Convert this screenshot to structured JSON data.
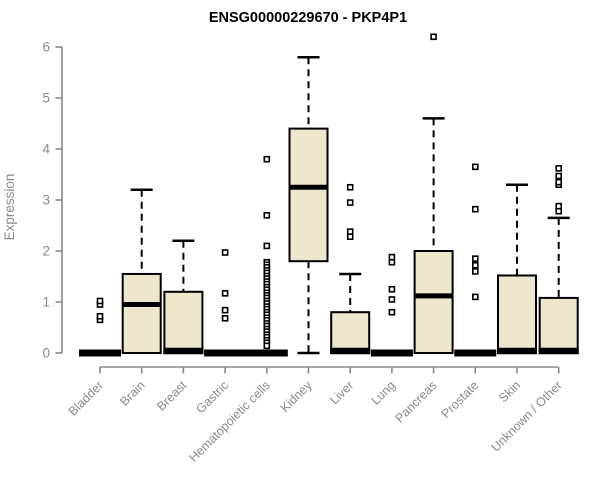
{
  "chart_data": {
    "type": "boxplot",
    "title": "ENSG00000229670 - PKP4P1",
    "ylabel": "Expression",
    "xlabel": "",
    "ylim": [
      0,
      6
    ],
    "yticks": [
      0,
      1,
      2,
      3,
      4,
      5,
      6
    ],
    "grid": false,
    "legend": "none",
    "categories": [
      "Bladder",
      "Brain",
      "Breast",
      "Gastric",
      "Hematopoietic cells",
      "Kidney",
      "Liver",
      "Lung",
      "Pancreas",
      "Prostate",
      "Skin",
      "Unknown / Other"
    ],
    "series": [
      {
        "category": "Bladder",
        "flat": true,
        "q1": 0,
        "median": 0,
        "q3": 0,
        "whisker_low": 0,
        "whisker_high": 0,
        "outliers": [
          0.65,
          0.72,
          0.95,
          1.02
        ]
      },
      {
        "category": "Brain",
        "flat": false,
        "q1": 0,
        "median": 0.95,
        "q3": 1.55,
        "whisker_low": 0,
        "whisker_high": 3.2,
        "outliers": []
      },
      {
        "category": "Breast",
        "flat": false,
        "q1": 0,
        "median": 0,
        "q3": 1.2,
        "whisker_low": 0,
        "whisker_high": 2.2,
        "outliers": []
      },
      {
        "category": "Gastric",
        "flat": true,
        "q1": 0,
        "median": 0,
        "q3": 0,
        "whisker_low": 0,
        "whisker_high": 0,
        "outliers": [
          0.68,
          0.84,
          1.17,
          1.97
        ]
      },
      {
        "category": "Hematopoietic cells",
        "flat": true,
        "q1": 0,
        "median": 0,
        "q3": 0,
        "whisker_low": 0,
        "whisker_high": 0,
        "outliers": [
          3.8,
          2.7,
          2.1,
          1.78,
          1.73,
          1.68,
          1.62,
          1.57,
          1.51,
          1.46,
          1.4,
          1.35,
          1.29,
          1.24,
          1.18,
          1.13,
          1.08,
          1.02,
          0.97,
          0.91,
          0.86,
          0.8,
          0.75,
          0.69,
          0.64,
          0.58,
          0.53,
          0.47,
          0.42,
          0.36,
          0.31,
          0.25,
          0.2,
          0.14
        ]
      },
      {
        "category": "Kidney",
        "flat": false,
        "q1": 1.8,
        "median": 3.25,
        "q3": 4.4,
        "whisker_low": 0,
        "whisker_high": 5.8,
        "outliers": []
      },
      {
        "category": "Liver",
        "flat": false,
        "q1": 0,
        "median": 0,
        "q3": 0.8,
        "whisker_low": 0,
        "whisker_high": 1.55,
        "outliers": [
          2.28,
          2.38,
          2.95,
          3.25
        ]
      },
      {
        "category": "Lung",
        "flat": true,
        "q1": 0,
        "median": 0,
        "q3": 0,
        "whisker_low": 0,
        "whisker_high": 0,
        "outliers": [
          0.8,
          1.05,
          1.25,
          1.78,
          1.88
        ]
      },
      {
        "category": "Pancreas",
        "flat": false,
        "q1": 0,
        "median": 1.12,
        "q3": 2.0,
        "whisker_low": 0,
        "whisker_high": 4.6,
        "outliers": [
          6.2
        ]
      },
      {
        "category": "Prostate",
        "flat": true,
        "q1": 0,
        "median": 0,
        "q3": 0,
        "whisker_low": 0,
        "whisker_high": 0,
        "outliers": [
          1.1,
          1.6,
          1.72,
          1.85,
          2.82,
          3.65
        ]
      },
      {
        "category": "Skin",
        "flat": false,
        "q1": 0,
        "median": 0,
        "q3": 1.52,
        "whisker_low": 0,
        "whisker_high": 3.3,
        "outliers": []
      },
      {
        "category": "Unknown / Other",
        "flat": false,
        "q1": 0,
        "median": 0,
        "q3": 1.08,
        "whisker_low": 0,
        "whisker_high": 2.65,
        "outliers": [
          2.78,
          2.88,
          3.3,
          3.35,
          3.47,
          3.62
        ]
      }
    ],
    "colors": {
      "box_fill": "#ECE7CD",
      "box_stroke": "#000000",
      "median": "#000000",
      "axis": "#8A8A8A",
      "tick_label": "#8A8A8A",
      "title": "#000000",
      "background": "#FFFFFF"
    }
  }
}
